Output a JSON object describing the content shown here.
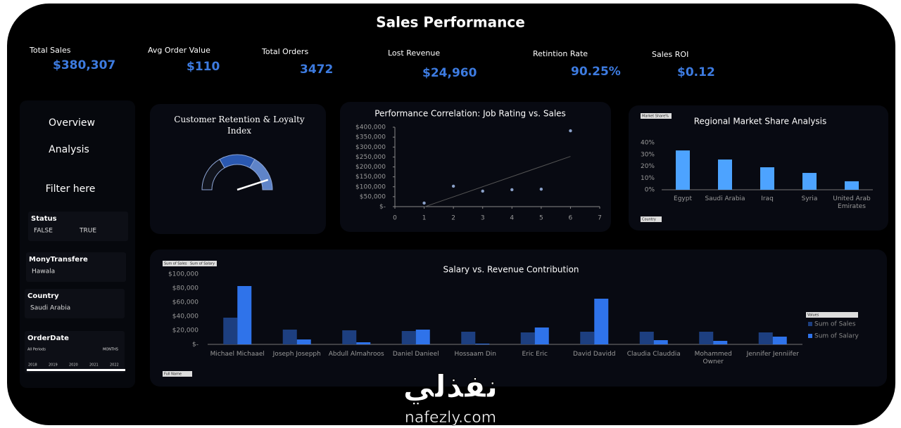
{
  "header": {
    "title": "Sales Performance"
  },
  "kpis": [
    {
      "label": "Total Sales",
      "value": "$380,307"
    },
    {
      "label": "Avg Order Value",
      "value": "$110"
    },
    {
      "label": "Total Orders",
      "value": "3472"
    },
    {
      "label": "Lost Revenue",
      "value": "$24,960"
    },
    {
      "label": "Retintion Rate",
      "value": "90.25%"
    },
    {
      "label": "Sales ROI",
      "value": "$0.12"
    }
  ],
  "nav": [
    "Overview",
    "Analysis",
    "Filter here"
  ],
  "slicers": [
    {
      "title": "Status",
      "items": [
        "FALSE",
        "TRUE"
      ]
    },
    {
      "title": "MonyTransfere",
      "items": [
        "Hawala"
      ]
    },
    {
      "title": "Country",
      "items": [
        "Saudi Arabia"
      ]
    },
    {
      "title": "OrderDate",
      "items": [
        "All Periods",
        "MONTHS"
      ],
      "timeline": [
        "2018",
        "2019",
        "2020",
        "2021",
        "2022"
      ]
    }
  ],
  "watermark": {
    "arabic": "نفذلي",
    "latin": "nafezly.com"
  },
  "chart_data": [
    {
      "type": "gauge",
      "title": "Customer Retention & Loyalty Index",
      "value": 90,
      "ylim": [
        0,
        100
      ],
      "color": "#ffffff"
    },
    {
      "type": "scatter",
      "title": "Performance Correlation: Job Rating vs. Sales",
      "x": [
        1,
        2,
        3,
        4,
        5,
        6
      ],
      "values": [
        18000,
        103000,
        78000,
        85000,
        88000,
        382000
      ],
      "color": "#8aa0c8",
      "xlim": [
        0,
        7
      ],
      "xticks": [
        0,
        1,
        2,
        3,
        4,
        5,
        6,
        7
      ],
      "ylim": [
        0,
        400000
      ],
      "yticks": [
        {
          "value": 0,
          "label": "$-"
        },
        {
          "value": 50000,
          "label": "$50,000"
        },
        {
          "value": 100000,
          "label": "$100,000"
        },
        {
          "value": 150000,
          "label": "$150,000"
        },
        {
          "value": 200000,
          "label": "$200,000"
        },
        {
          "value": 250000,
          "label": "$250,000"
        },
        {
          "value": 300000,
          "label": "$300,000"
        },
        {
          "value": 350000,
          "label": "$350,000"
        },
        {
          "value": 400000,
          "label": "$400,000"
        }
      ],
      "trendline": true
    },
    {
      "type": "bar",
      "title": "Regional Market Share Analysis",
      "categories": [
        "Egypt",
        "Saudi Arabia",
        "Iraq",
        "Syria",
        "United Arab Emirates"
      ],
      "values": [
        33.4,
        25.7,
        19.1,
        14.3,
        7.2
      ],
      "color": "#4da3ff",
      "ylim": [
        0,
        40
      ],
      "yticks": [
        {
          "value": 0,
          "label": "0%"
        },
        {
          "value": 10,
          "label": "10%"
        },
        {
          "value": 20,
          "label": "20%"
        },
        {
          "value": 30,
          "label": "30%"
        },
        {
          "value": 40,
          "label": "40%"
        }
      ],
      "field_buttons": [
        "Market Share%",
        "Country"
      ]
    },
    {
      "type": "grouped-bar",
      "title": "Salary vs. Revenue Contribution",
      "categories": [
        "Michael Michaael",
        "Joseph Josepph",
        "Abdull Almahroos",
        "Daniel Danieel",
        "Hossaam Din",
        "Eric Eric",
        "David Davidd",
        "Claudia Clauddia",
        "Mohammed Owner",
        "Jennifer Jenniifer"
      ],
      "series": [
        {
          "name": "Sum of Sales",
          "color": "#1d3f80",
          "values": [
            38000,
            21000,
            20000,
            19000,
            18000,
            17000,
            18000,
            18000,
            18000,
            17000
          ]
        },
        {
          "name": "Sum of Salary",
          "color": "#2f73ea",
          "values": [
            83000,
            7000,
            3000,
            21000,
            1000,
            24000,
            65000,
            6000,
            5000,
            11000
          ]
        }
      ],
      "ylim": [
        0,
        100000
      ],
      "yticks": [
        {
          "value": 0,
          "label": "$-"
        },
        {
          "value": 20000,
          "label": "$20,000"
        },
        {
          "value": 40000,
          "label": "$40,000"
        },
        {
          "value": 60000,
          "label": "$60,000"
        },
        {
          "value": 80000,
          "label": "$80,000"
        },
        {
          "value": 100000,
          "label": "$100,000"
        }
      ],
      "legend_title": "Values",
      "field_buttons": [
        "Sum of Sales",
        "Sum of Salary",
        "Full Name"
      ]
    }
  ]
}
